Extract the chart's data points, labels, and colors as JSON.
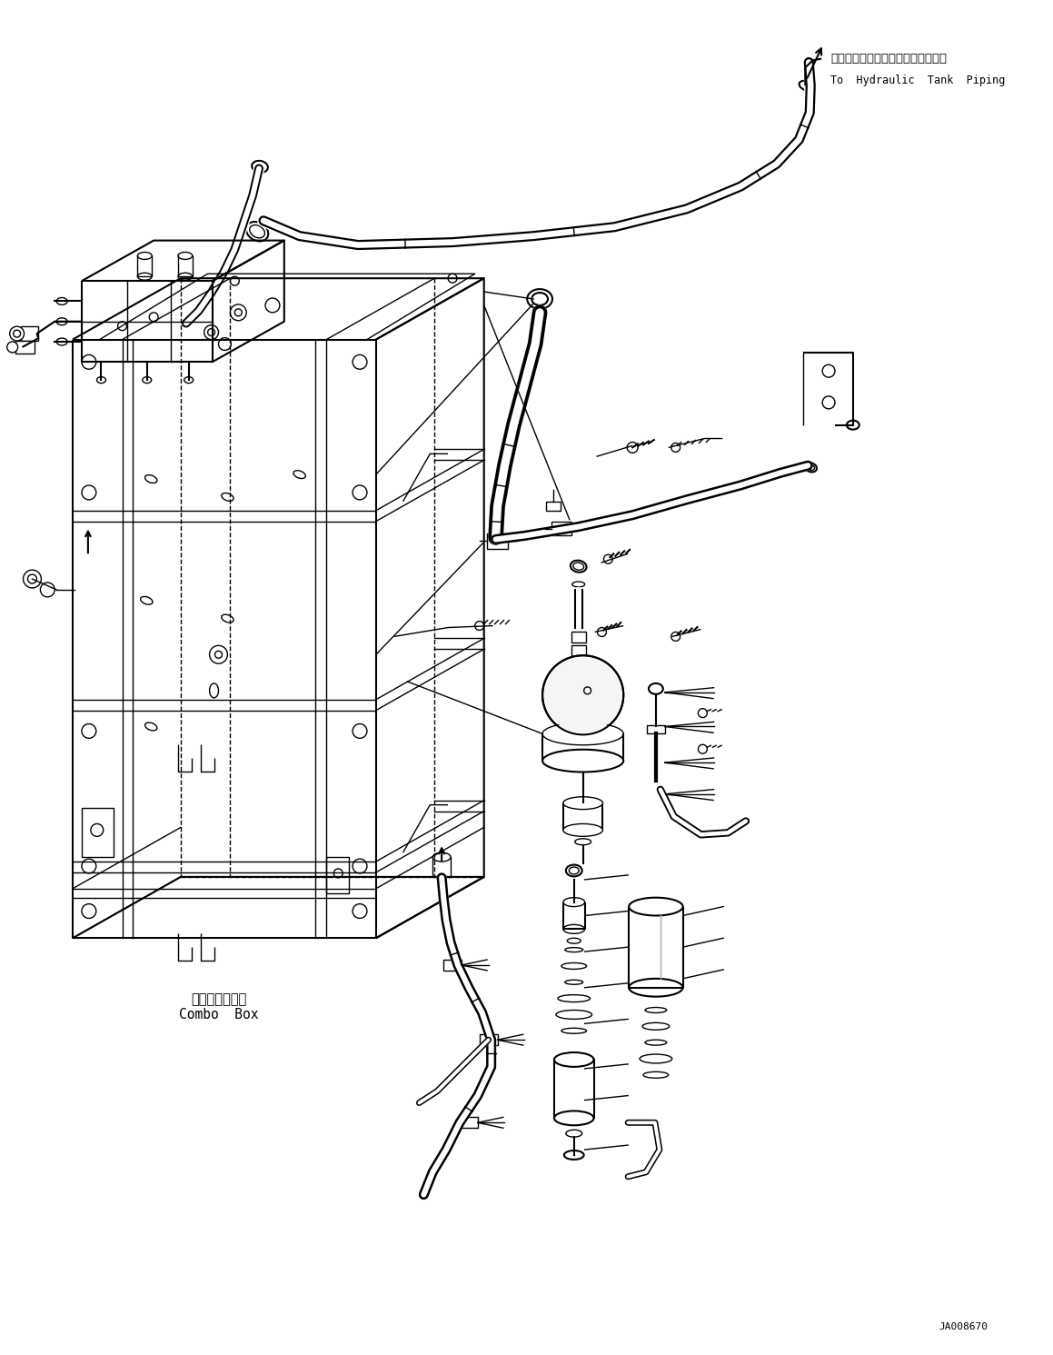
{
  "background_color": "#ffffff",
  "figure_width": 11.59,
  "figure_height": 14.91,
  "dpi": 100,
  "label_top_right_japanese": "ハイドロリックタンクパイピングへ",
  "label_top_right_english": "To  Hydraulic  Tank  Piping",
  "label_bottom_left_japanese": "コンボボックス",
  "label_bottom_left_english": "Combo  Box",
  "label_bottom_right": "JA008670",
  "line_color": "#000000",
  "text_color": "#000000"
}
